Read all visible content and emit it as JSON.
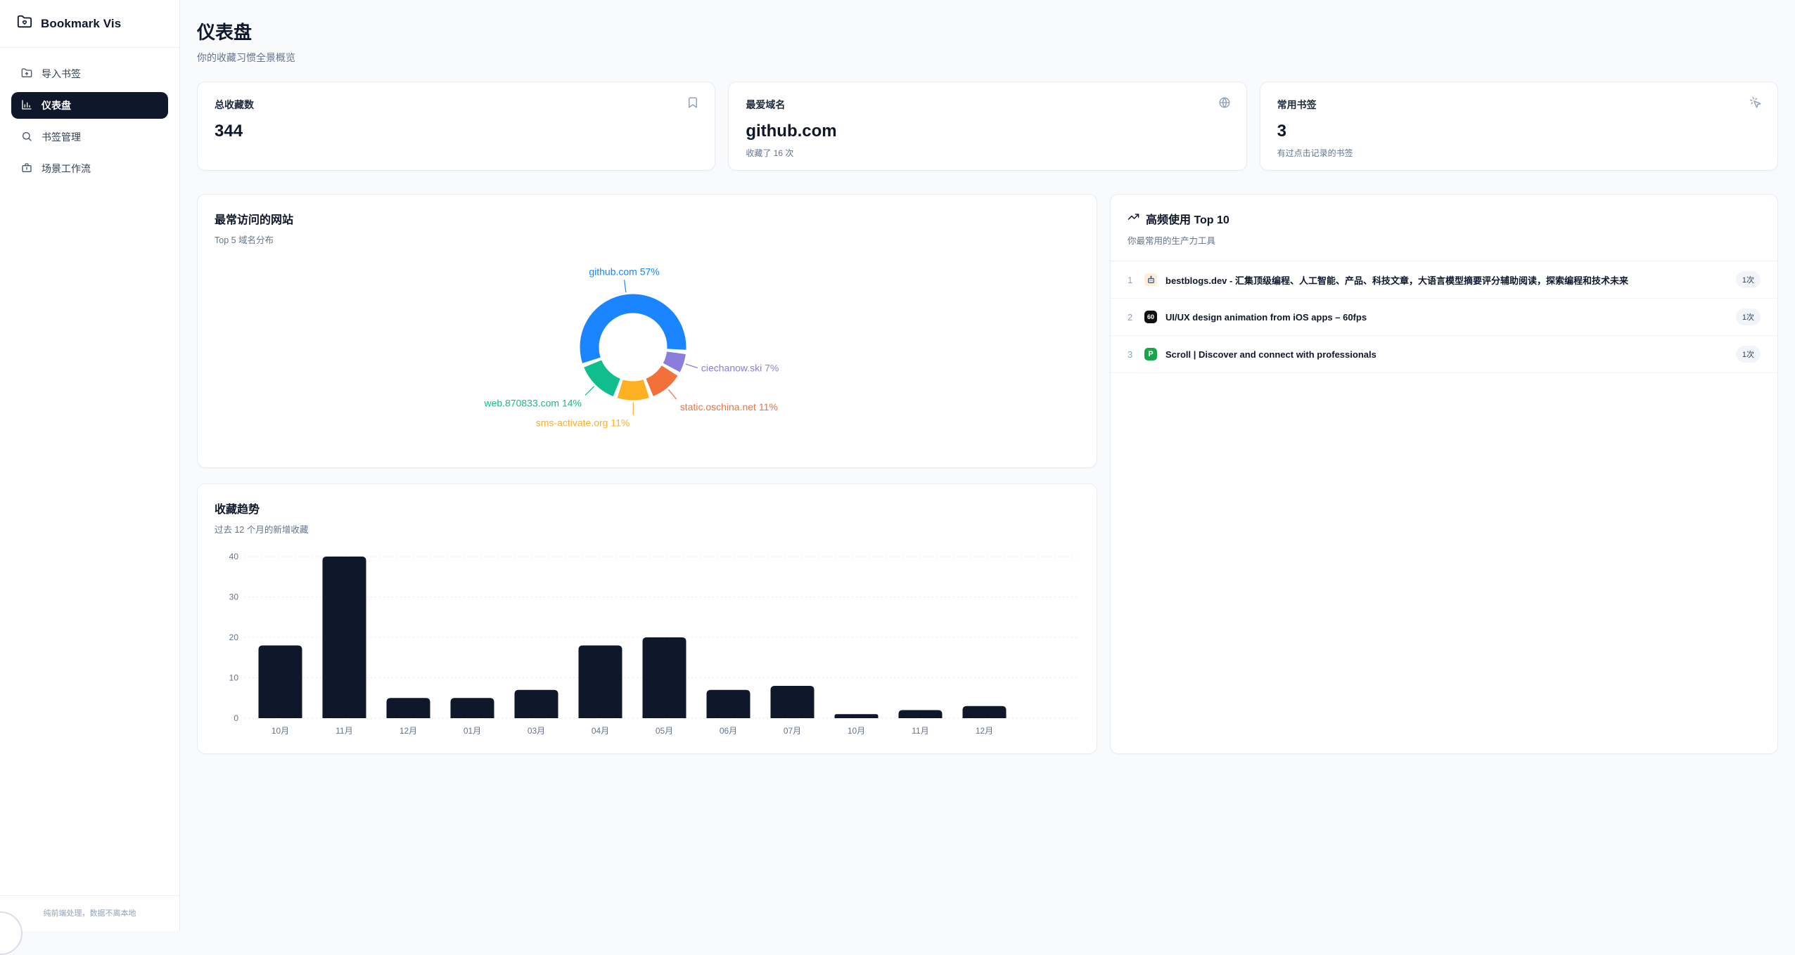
{
  "sidebar": {
    "logo": "Bookmark Vis",
    "nav": [
      {
        "label": "导入书签",
        "icon": "folder-import-icon",
        "active": false
      },
      {
        "label": "仪表盘",
        "icon": "bar-chart-icon",
        "active": true
      },
      {
        "label": "书签管理",
        "icon": "search-icon",
        "active": false
      },
      {
        "label": "场景工作流",
        "icon": "briefcase-icon",
        "active": false
      }
    ],
    "footer_note": "纯前端处理，数据不离本地"
  },
  "header": {
    "title": "仪表盘",
    "subtitle": "你的收藏习惯全景概览"
  },
  "stat_cards": [
    {
      "label": "总收藏数",
      "value": "344",
      "sub": "",
      "icon": "bookmark-icon"
    },
    {
      "label": "最爱域名",
      "value": "github.com",
      "sub": "收藏了 16 次",
      "icon": "globe-icon"
    },
    {
      "label": "常用书签",
      "value": "3",
      "sub": "有过点击记录的书签",
      "icon": "pointer-click-icon"
    }
  ],
  "top_sites_card": {
    "title": "最常访问的网站",
    "subtitle": "Top 5 域名分布"
  },
  "trend_card": {
    "title": "收藏趋势",
    "subtitle": "过去 12 个月的新增收藏"
  },
  "top_used_card": {
    "title": "高频使用 Top 10",
    "subtitle": "你最常用的生产力工具",
    "icon": "trending-up-icon",
    "items": [
      {
        "rank": "1",
        "favicon": "robot-favicon",
        "title": "bestblogs.dev - 汇集顶级编程、人工智能、产品、科技文章，大语言模型摘要评分辅助阅读，探索编程和技术未来",
        "count": "1次"
      },
      {
        "rank": "2",
        "favicon": "60fps-favicon",
        "favicon_text": "60",
        "title": "UI/UX design animation from iOS apps – 60fps",
        "count": "1次"
      },
      {
        "rank": "3",
        "favicon": "p-favicon",
        "favicon_text": "P",
        "title": "Scroll | Discover and connect with professionals",
        "count": "1次"
      }
    ]
  },
  "chart_data": [
    {
      "type": "pie",
      "variant": "donut",
      "title": "最常访问的网站",
      "labels": [
        "github.com",
        "ciechanow.ski",
        "static.oschina.net",
        "sms-activate.org",
        "web.870833.com"
      ],
      "values": [
        57,
        7,
        11,
        11,
        14
      ],
      "unit": "%",
      "colors": [
        "#1a85ff",
        "#8b7ddb",
        "#f4703a",
        "#fdb022",
        "#10bd8d"
      ],
      "start_angle_deg": 250,
      "label_format": "{label} {value}%",
      "legend": "none"
    },
    {
      "type": "bar",
      "title": "收藏趋势",
      "categories": [
        "10月",
        "11月",
        "12月",
        "01月",
        "03月",
        "04月",
        "05月",
        "06月",
        "07月",
        "10月",
        "11月",
        "12月"
      ],
      "values": [
        18,
        40,
        5,
        5,
        7,
        18,
        20,
        7,
        8,
        1,
        2,
        3
      ],
      "xlabel": "",
      "ylabel": "",
      "ylim": [
        0,
        40
      ],
      "yticks": [
        0,
        10,
        20,
        30,
        40
      ],
      "grid": "dotted-horizontal",
      "bar_color": "#0f172a"
    }
  ]
}
